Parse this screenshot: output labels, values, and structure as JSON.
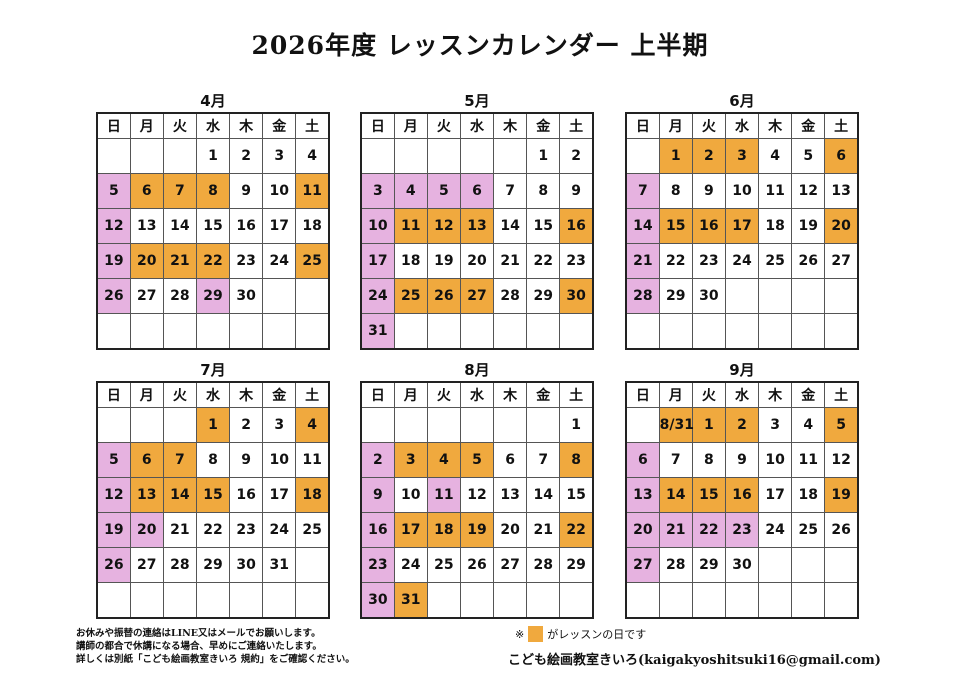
{
  "title": "2026年度 レッスンカレンダー 上半期",
  "weekdays": [
    "日",
    "月",
    "火",
    "水",
    "木",
    "金",
    "土"
  ],
  "colors": {
    "lesson": "#f0a93e",
    "holiday": "#e6b2e0"
  },
  "months": [
    {
      "label": "4月",
      "weeks": [
        [
          "",
          "",
          "",
          "1",
          "2",
          "3",
          "4"
        ],
        [
          "5",
          "6",
          "7",
          "8",
          "9",
          "10",
          "11"
        ],
        [
          "12",
          "13",
          "14",
          "15",
          "16",
          "17",
          "18"
        ],
        [
          "19",
          "20",
          "21",
          "22",
          "23",
          "24",
          "25"
        ],
        [
          "26",
          "27",
          "28",
          "29",
          "30",
          "",
          ""
        ],
        [
          "",
          "",
          "",
          "",
          "",
          "",
          ""
        ]
      ],
      "lesson": [
        "6",
        "7",
        "8",
        "11",
        "20",
        "21",
        "22",
        "25"
      ],
      "holiday": [
        "5",
        "12",
        "19",
        "26",
        "29"
      ]
    },
    {
      "label": "5月",
      "weeks": [
        [
          "",
          "",
          "",
          "",
          "",
          "1",
          "2"
        ],
        [
          "3",
          "4",
          "5",
          "6",
          "7",
          "8",
          "9"
        ],
        [
          "10",
          "11",
          "12",
          "13",
          "14",
          "15",
          "16"
        ],
        [
          "17",
          "18",
          "19",
          "20",
          "21",
          "22",
          "23"
        ],
        [
          "24",
          "25",
          "26",
          "27",
          "28",
          "29",
          "30"
        ],
        [
          "31",
          "",
          "",
          "",
          "",
          "",
          ""
        ]
      ],
      "lesson": [
        "11",
        "12",
        "13",
        "16",
        "25",
        "26",
        "27",
        "30"
      ],
      "holiday": [
        "3",
        "4",
        "5",
        "6",
        "10",
        "17",
        "24",
        "31"
      ]
    },
    {
      "label": "6月",
      "weeks": [
        [
          "",
          "1",
          "2",
          "3",
          "4",
          "5",
          "6"
        ],
        [
          "7",
          "8",
          "9",
          "10",
          "11",
          "12",
          "13"
        ],
        [
          "14",
          "15",
          "16",
          "17",
          "18",
          "19",
          "20"
        ],
        [
          "21",
          "22",
          "23",
          "24",
          "25",
          "26",
          "27"
        ],
        [
          "28",
          "29",
          "30",
          "",
          "",
          "",
          ""
        ],
        [
          "",
          "",
          "",
          "",
          "",
          "",
          ""
        ]
      ],
      "lesson": [
        "1",
        "2",
        "3",
        "6",
        "15",
        "16",
        "17",
        "20"
      ],
      "holiday": [
        "7",
        "14",
        "21",
        "28"
      ]
    },
    {
      "label": "7月",
      "weeks": [
        [
          "",
          "",
          "",
          "1",
          "2",
          "3",
          "4"
        ],
        [
          "5",
          "6",
          "7",
          "8",
          "9",
          "10",
          "11"
        ],
        [
          "12",
          "13",
          "14",
          "15",
          "16",
          "17",
          "18"
        ],
        [
          "19",
          "20",
          "21",
          "22",
          "23",
          "24",
          "25"
        ],
        [
          "26",
          "27",
          "28",
          "29",
          "30",
          "31",
          ""
        ],
        [
          "",
          "",
          "",
          "",
          "",
          "",
          ""
        ]
      ],
      "lesson": [
        "1",
        "4",
        "6",
        "7",
        "13",
        "14",
        "15",
        "18"
      ],
      "holiday": [
        "5",
        "12",
        "19",
        "20",
        "26"
      ]
    },
    {
      "label": "8月",
      "weeks": [
        [
          "",
          "",
          "",
          "",
          "",
          "",
          "1"
        ],
        [
          "2",
          "3",
          "4",
          "5",
          "6",
          "7",
          "8"
        ],
        [
          "9",
          "10",
          "11",
          "12",
          "13",
          "14",
          "15"
        ],
        [
          "16",
          "17",
          "18",
          "19",
          "20",
          "21",
          "22"
        ],
        [
          "23",
          "24",
          "25",
          "26",
          "27",
          "28",
          "29"
        ],
        [
          "30",
          "31",
          "",
          "",
          "",
          "",
          ""
        ]
      ],
      "lesson": [
        "3",
        "4",
        "5",
        "8",
        "17",
        "18",
        "19",
        "22",
        "31"
      ],
      "holiday": [
        "2",
        "9",
        "11",
        "16",
        "23",
        "30"
      ]
    },
    {
      "label": "9月",
      "weeks": [
        [
          "",
          "8/31",
          "1",
          "2",
          "3",
          "4",
          "5"
        ],
        [
          "6",
          "7",
          "8",
          "9",
          "10",
          "11",
          "12"
        ],
        [
          "13",
          "14",
          "15",
          "16",
          "17",
          "18",
          "19"
        ],
        [
          "20",
          "21",
          "22",
          "23",
          "24",
          "25",
          "26"
        ],
        [
          "27",
          "28",
          "29",
          "30",
          "",
          "",
          ""
        ],
        [
          "",
          "",
          "",
          "",
          "",
          "",
          ""
        ]
      ],
      "lesson": [
        "8/31",
        "1",
        "2",
        "5",
        "14",
        "15",
        "16",
        "19"
      ],
      "holiday": [
        "6",
        "13",
        "20",
        "21",
        "22",
        "23",
        "27"
      ]
    }
  ],
  "notes": [
    "お休みや振替の連絡はLINE又はメールでお願いします。",
    "講師の都合で休講になる場合、早めにご連絡いたします。",
    "詳しくは別紙「こども絵画教室きいろ 規約」をご確認ください。"
  ],
  "legend": {
    "prefix": "※",
    "text": "がレッスンの日です"
  },
  "contact": "こども絵画教室きいろ(kaigakyoshitsuki16@gmail.com)"
}
